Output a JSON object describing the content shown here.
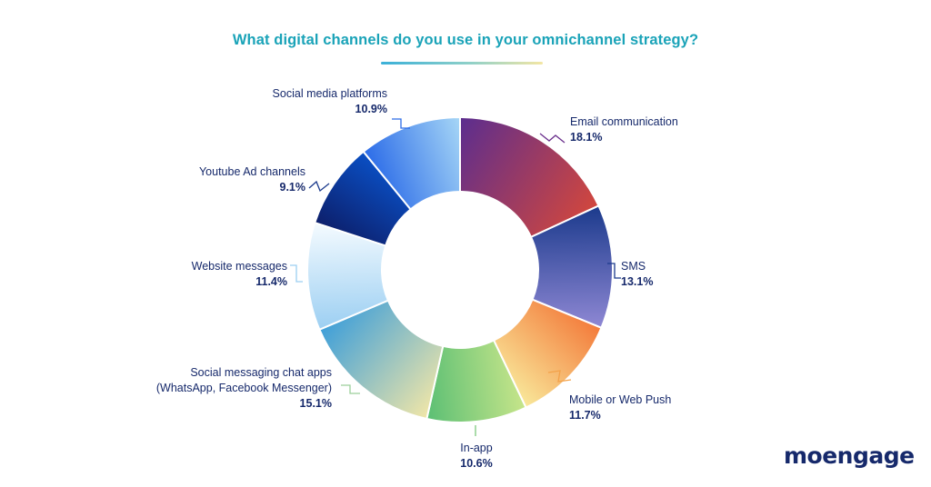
{
  "chart_data": {
    "type": "pie",
    "donut": true,
    "title": "What digital channels do you use in your omnichannel strategy?",
    "slices": [
      {
        "label": "Email communication",
        "value": 18.1,
        "pct_text": "18.1%",
        "colors": [
          "#5b2d8f",
          "#d2473d"
        ]
      },
      {
        "label": "SMS",
        "value": 13.1,
        "pct_text": "13.1%",
        "colors": [
          "#1b3a8c",
          "#8f88d4"
        ]
      },
      {
        "label": "Mobile or Web Push",
        "value": 11.7,
        "pct_text": "11.7%",
        "colors": [
          "#f37a3a",
          "#f9e89a"
        ]
      },
      {
        "label": "In-app",
        "value": 10.6,
        "pct_text": "10.6%",
        "colors": [
          "#c7e58a",
          "#5bbf74"
        ]
      },
      {
        "label": "Social messaging chat apps\n(WhatsApp, Facebook Messenger)",
        "value": 15.1,
        "pct_text": "15.1%",
        "colors": [
          "#f0e6a8",
          "#3f9fd9"
        ]
      },
      {
        "label": "Website messages",
        "value": 11.4,
        "pct_text": "11.4%",
        "colors": [
          "#9ccff2",
          "#f5fbff"
        ]
      },
      {
        "label": "Youtube Ad channels",
        "value": 9.1,
        "pct_text": "9.1%",
        "colors": [
          "#0d1f6b",
          "#0a4fc4"
        ]
      },
      {
        "label": "Social media platforms",
        "value": 10.9,
        "pct_text": "10.9%",
        "colors": [
          "#2c6ce8",
          "#a6d6f6"
        ]
      }
    ]
  },
  "brand": {
    "logo_text": "moengage"
  },
  "colors": {
    "title": "#1aa3b8",
    "label": "#16296b"
  }
}
